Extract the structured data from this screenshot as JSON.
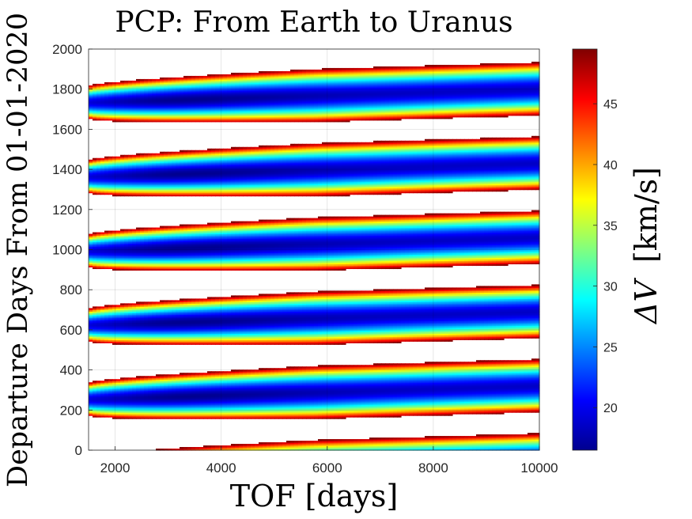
{
  "chart_data": {
    "type": "heatmap",
    "title": "PCP: From Earth to Uranus",
    "xlabel": "TOF [days]",
    "ylabel": "Departure Days From 01-01-2020",
    "colorbar_label_symbol": "ΔV",
    "colorbar_label_unit": "[km/s]",
    "xlim": [
      1500,
      10000
    ],
    "ylim": [
      0,
      2000
    ],
    "x_ticks": [
      2000,
      4000,
      6000,
      8000,
      10000
    ],
    "y_ticks": [
      0,
      200,
      400,
      600,
      800,
      1000,
      1200,
      1400,
      1600,
      1800,
      2000
    ],
    "colorbar_range": [
      16.5,
      49.5
    ],
    "colorbar_ticks": [
      20,
      25,
      30,
      35,
      40,
      45
    ],
    "colormap": "jet",
    "grid": true,
    "synodic_period_days": 369.7,
    "band_centers_at_x_min": [
      -115,
      255,
      625,
      995,
      1365,
      1735
    ],
    "band_slope_per_day": 0.0079,
    "band_half_width_at_x_min": 80,
    "band_half_width_growth": 58,
    "band_half_width_max": 132,
    "min_dv_at_center": 17,
    "max_dv_cutoff": 49.5,
    "optimal_tof_days": 3300
  }
}
